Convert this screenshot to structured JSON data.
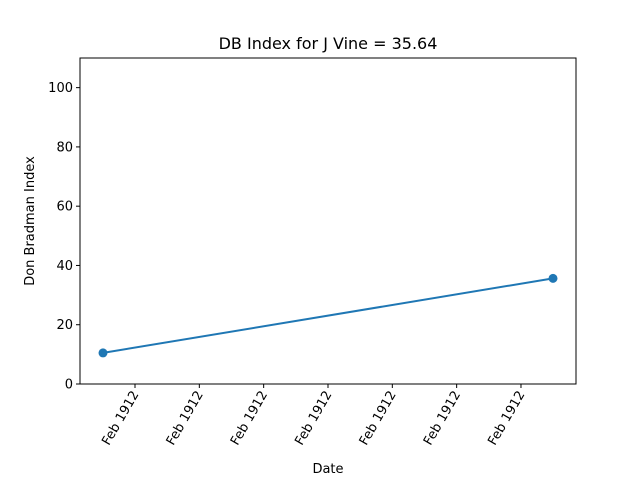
{
  "chart_data": {
    "type": "line",
    "title": "DB Index for J Vine = 35.64",
    "xlabel": "Date",
    "ylabel": "Don Bradman Index",
    "ylim": [
      0,
      110
    ],
    "yticks": [
      0,
      20,
      40,
      60,
      80,
      100
    ],
    "xtick_labels": [
      "Feb 1912",
      "Feb 1912",
      "Feb 1912",
      "Feb 1912",
      "Feb 1912",
      "Feb 1912",
      "Feb 1912"
    ],
    "series": [
      {
        "color": "#1f77b4",
        "values": [
          10.5,
          35.64
        ]
      }
    ],
    "grid": false,
    "legend": "none"
  }
}
